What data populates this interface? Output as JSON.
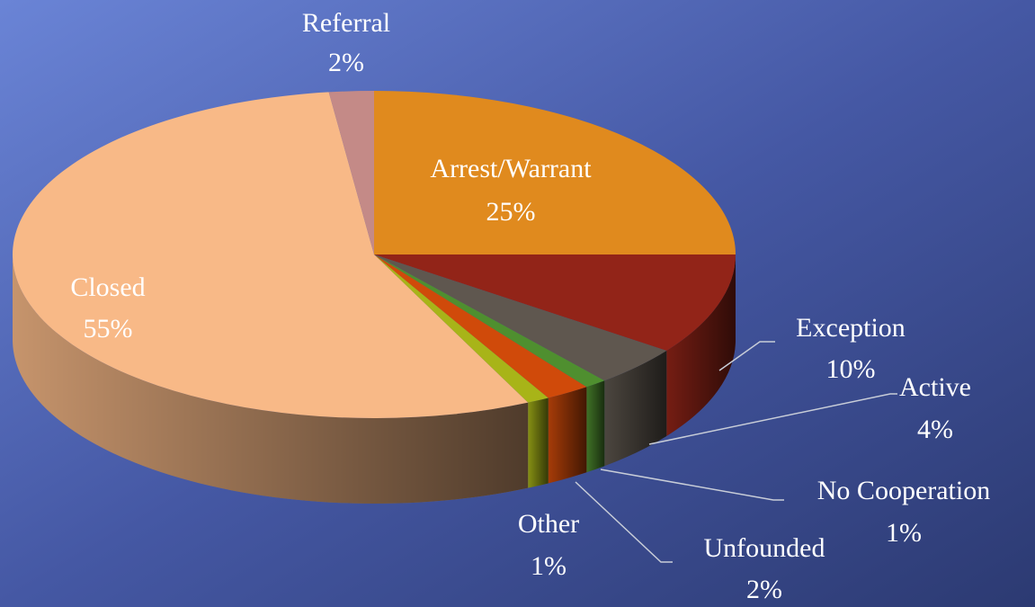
{
  "chart_data": {
    "type": "pie",
    "categories": [
      "Arrest/Warrant",
      "Exception",
      "Active",
      "No Cooperation",
      "Unfounded",
      "Other",
      "Closed",
      "Referral"
    ],
    "values": [
      25,
      10,
      4,
      1,
      2,
      1,
      55,
      2
    ],
    "value_labels": [
      "25%",
      "10%",
      "4%",
      "1%",
      "2%",
      "1%",
      "55%",
      "2%"
    ],
    "colors": [
      "#e08a1e",
      "#922418",
      "#5f574f",
      "#4f8f2f",
      "#d04a0a",
      "#a8b418",
      "#f8b987",
      "#c48a87"
    ]
  }
}
